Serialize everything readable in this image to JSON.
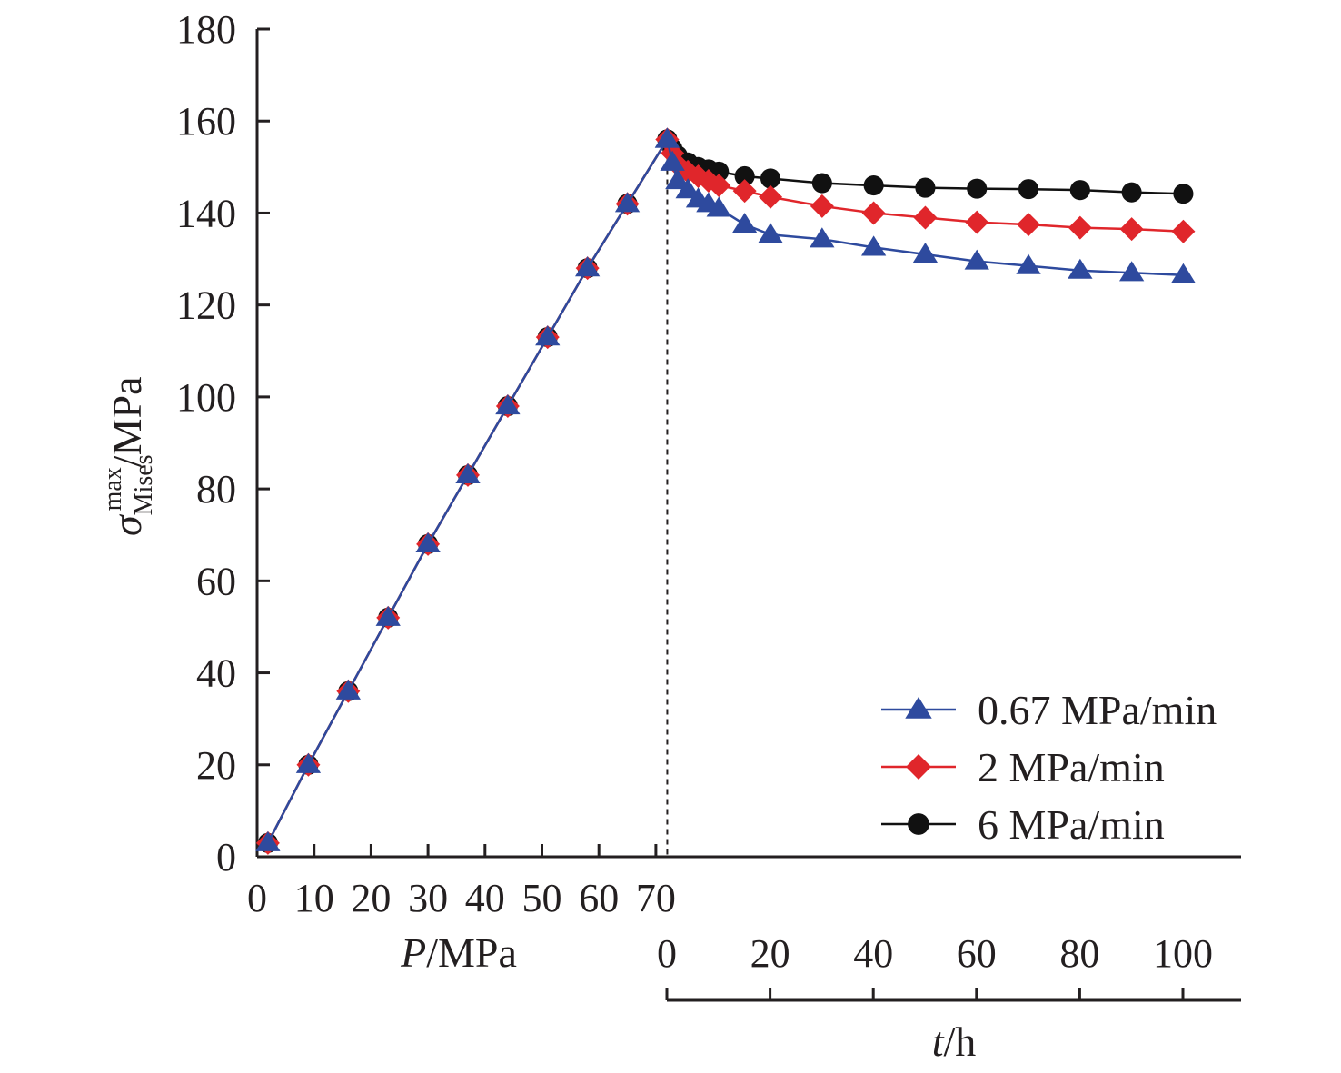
{
  "chart_data": {
    "type": "line",
    "ylabel": {
      "symbol": "σ",
      "sub": "Mises",
      "sup": "max",
      "unit": "/MPa"
    },
    "ylim": [
      0,
      180
    ],
    "yticks": [
      0,
      20,
      40,
      60,
      80,
      100,
      120,
      140,
      160,
      180
    ],
    "x_axes": [
      {
        "label_italic": "P",
        "label_rest": "/MPa",
        "range": [
          0,
          72
        ],
        "ticks": [
          0,
          10,
          20,
          30,
          40,
          50,
          60,
          70
        ]
      },
      {
        "label_italic": "t",
        "label_rest": "/h",
        "range": [
          0,
          100
        ],
        "ticks": [
          0,
          20,
          40,
          60,
          80,
          100
        ]
      }
    ],
    "legend_position": "bottom-right",
    "grid": false,
    "loading_P": [
      1.9,
      9,
      16,
      23,
      30,
      37,
      44,
      51,
      58,
      65,
      72
    ],
    "loading_sigma": [
      3,
      20,
      36,
      52,
      68,
      83,
      98,
      113,
      128,
      142,
      156
    ],
    "creep_t": [
      0,
      1,
      2,
      4,
      6,
      8,
      10,
      15,
      20,
      30,
      40,
      50,
      60,
      70,
      80,
      90,
      100
    ],
    "series": [
      {
        "name": "0.67 MPa/min",
        "color": "#2e4a9e",
        "marker": "triangle",
        "creep_sigma": [
          156,
          151,
          147,
          145,
          143,
          142,
          141,
          137.5,
          135.3,
          134.3,
          132.5,
          131,
          129.5,
          128.5,
          127.5,
          127,
          126.5
        ]
      },
      {
        "name": "2 MPa/min",
        "color": "#e0262b",
        "marker": "diamond",
        "creep_sigma": [
          156,
          153,
          150.5,
          149,
          148,
          147,
          146,
          144.8,
          143.5,
          141.5,
          140,
          139,
          138,
          137.5,
          136.8,
          136.5,
          136
        ]
      },
      {
        "name": "6 MPa/min",
        "color": "#111111",
        "marker": "circle",
        "creep_sigma": [
          156,
          154,
          152.5,
          151,
          150,
          149.5,
          149,
          148,
          147.5,
          146.5,
          146,
          145.5,
          145.3,
          145.2,
          145,
          144.5,
          144.2
        ]
      }
    ]
  }
}
